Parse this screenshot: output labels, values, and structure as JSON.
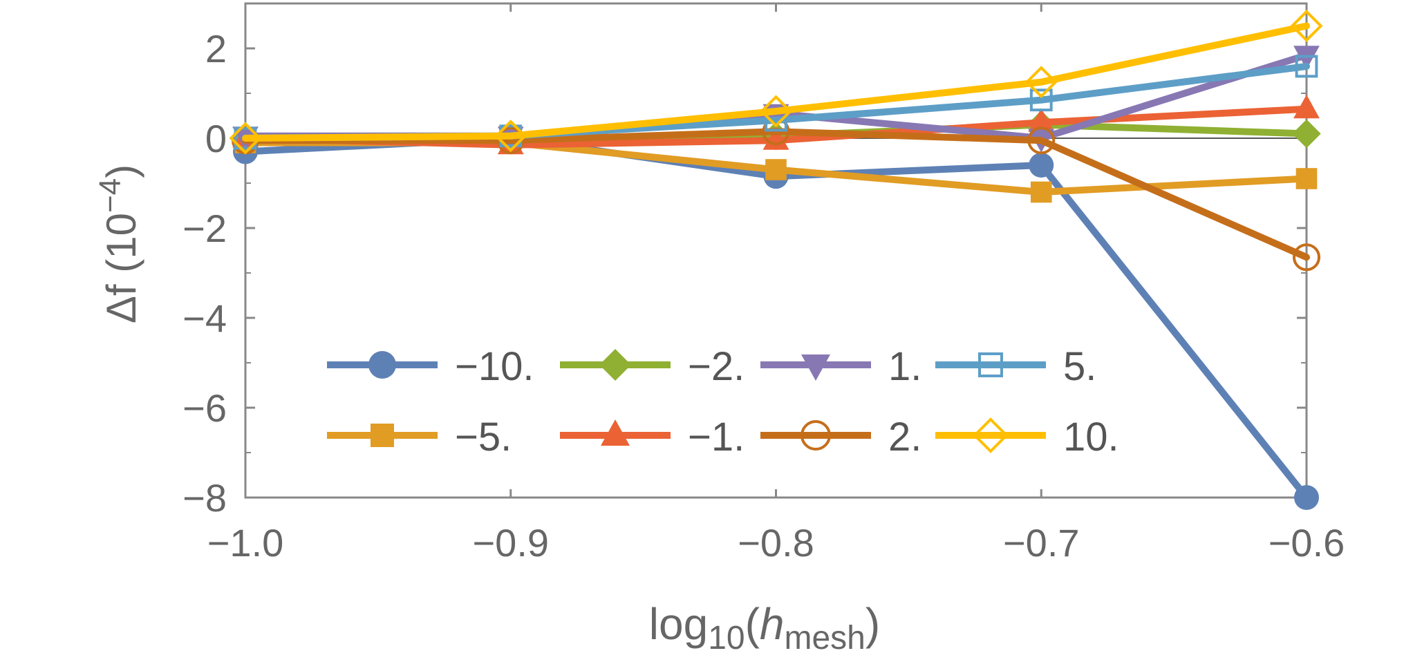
{
  "chart_data": {
    "type": "line",
    "title": "",
    "xlabel": {
      "base": "log",
      "sub": "10",
      "open": "(",
      "var": "h",
      "var_sub": "mesh",
      "close": ")"
    },
    "ylabel": {
      "main": "Δf (10",
      "exp": "−4",
      "close": ")"
    },
    "xlim": [
      -1.0,
      -0.6
    ],
    "ylim": [
      -8,
      3
    ],
    "xticks": [
      -1.0,
      -0.9,
      -0.8,
      -0.7,
      -0.6
    ],
    "xtick_labels": [
      "−1.0",
      "−0.9",
      "−0.8",
      "−0.7",
      "−0.6"
    ],
    "yticks": [
      -8,
      -6,
      -4,
      -2,
      0,
      2
    ],
    "ytick_labels": [
      "−8",
      "−6",
      "−4",
      "−2",
      "0",
      "2"
    ],
    "x": [
      -1.0,
      -0.9,
      -0.8,
      -0.7,
      -0.6
    ],
    "grid": false,
    "legend_position": "lower-left (inside plot)",
    "series": [
      {
        "name": "−10.",
        "color": "#5E81B5",
        "marker": "circle",
        "values": [
          -0.3,
          0.0,
          -0.85,
          -0.6,
          -8.0
        ]
      },
      {
        "name": "−5.",
        "color": "#E19C24",
        "marker": "square",
        "values": [
          -0.1,
          -0.1,
          -0.7,
          -1.2,
          -0.9
        ]
      },
      {
        "name": "−2.",
        "color": "#8FB032",
        "marker": "diamond",
        "values": [
          0.0,
          0.0,
          0.05,
          0.3,
          0.1
        ]
      },
      {
        "name": "−1.",
        "color": "#EB6235",
        "marker": "triangle-up",
        "values": [
          0.0,
          -0.15,
          -0.05,
          0.35,
          0.65
        ]
      },
      {
        "name": "1.",
        "color": "#8778B3",
        "marker": "triangle-down",
        "values": [
          0.05,
          0.05,
          0.55,
          0.0,
          1.85
        ]
      },
      {
        "name": "2.",
        "color": "#C56E1A",
        "marker": "open-circle",
        "values": [
          -0.05,
          -0.05,
          0.15,
          -0.05,
          -2.65
        ]
      },
      {
        "name": "5.",
        "color": "#5D9EC7",
        "marker": "open-square",
        "values": [
          0.0,
          0.05,
          0.4,
          0.85,
          1.6
        ]
      },
      {
        "name": "10.",
        "color": "#FFBF00",
        "marker": "open-diamond",
        "values": [
          0.0,
          0.05,
          0.6,
          1.25,
          2.5
        ]
      }
    ]
  }
}
